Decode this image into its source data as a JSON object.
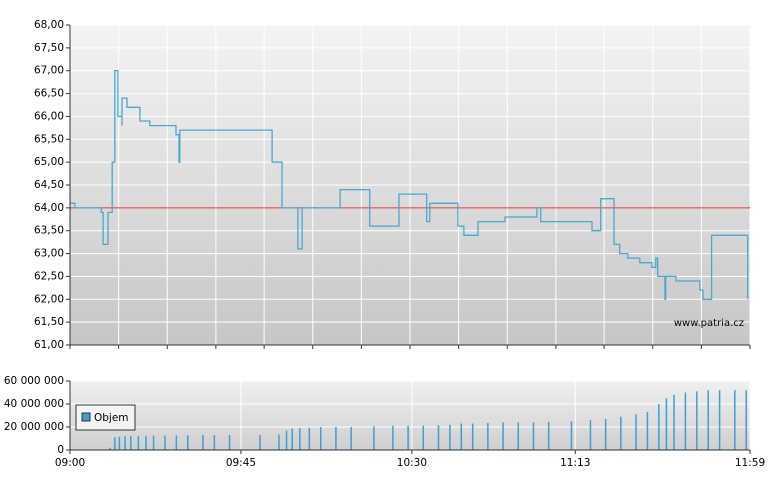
{
  "chart_data": [
    {
      "type": "line",
      "watermark": "www.patria.cz",
      "x": [
        0,
        1.3,
        1.3,
        8.2,
        8.2,
        8.7,
        8.7,
        10,
        10,
        11.1,
        11.1,
        11.8,
        11.8,
        12.6,
        12.6,
        13.7,
        13.7,
        13.7,
        15,
        15,
        18.4,
        18.4,
        21,
        21,
        27.9,
        27.9,
        28.7,
        28.7,
        28.9,
        28.9,
        53.2,
        53.2,
        55.8,
        55.8,
        60,
        60,
        61.1,
        61.1,
        71.1,
        71.1,
        78.9,
        78.9,
        86.6,
        86.6,
        93.9,
        93.9,
        94.7,
        94.7,
        102.1,
        102.1,
        103.7,
        103.7,
        107.4,
        107.4,
        114.5,
        114.5,
        122.9,
        122.9,
        123.9,
        123.9,
        137.4,
        137.4,
        139.7,
        139.7,
        143.2,
        143.2,
        144.7,
        144.7,
        146.8,
        146.8,
        150,
        150,
        153.2,
        153.2,
        154.2,
        154.2,
        154.7,
        154.7,
        156.6,
        156.6,
        156.8,
        156.8,
        159.5,
        159.5,
        165.8,
        165.8,
        166.6,
        166.6,
        168.9,
        168.9,
        178.4,
        178.4
      ],
      "series": [
        {
          "color": "#4aa8d0",
          "values": [
            64.1,
            64.1,
            64.0,
            64.0,
            63.9,
            63.9,
            63.2,
            63.2,
            63.9,
            63.9,
            65.0,
            65.0,
            67.0,
            67.0,
            66.0,
            66.0,
            65.8,
            66.4,
            66.4,
            66.2,
            66.2,
            65.9,
            65.9,
            65.8,
            65.8,
            65.6,
            65.6,
            65.0,
            65.0,
            65.7,
            65.7,
            65.0,
            65.0,
            64.0,
            64.0,
            63.1,
            63.1,
            64.0,
            64.0,
            64.4,
            64.4,
            63.6,
            63.6,
            64.3,
            64.3,
            63.7,
            63.7,
            64.1,
            64.1,
            63.6,
            63.6,
            63.4,
            63.4,
            63.7,
            63.7,
            63.8,
            63.8,
            64.0,
            64.0,
            63.7,
            63.7,
            63.5,
            63.5,
            64.2,
            64.2,
            63.2,
            63.2,
            63.0,
            63.0,
            62.9,
            62.9,
            62.8,
            62.8,
            62.7,
            62.7,
            62.9,
            62.9,
            62.5,
            62.5,
            62.0,
            62.0,
            62.5,
            62.5,
            62.4,
            62.4,
            62.2,
            62.2,
            62.0,
            62.0,
            63.4,
            63.4,
            62.0
          ]
        }
      ],
      "reference_line": 64,
      "reference_color": "#e03030",
      "xlim": [
        0,
        179
      ],
      "xgrid": [
        0,
        12.8,
        25.6,
        38.4,
        51.1,
        63.9,
        76.7,
        89.5,
        102.3,
        115.1,
        127.9,
        140.6,
        153.4,
        166.2,
        179
      ],
      "ylim": [
        61,
        68
      ],
      "yticks": [
        {
          "value": 61,
          "label": "61,00"
        },
        {
          "value": 61.5,
          "label": "61,50"
        },
        {
          "value": 62,
          "label": "62,00"
        },
        {
          "value": 62.5,
          "label": "62,50"
        },
        {
          "value": 63,
          "label": "63,00"
        },
        {
          "value": 63.5,
          "label": "63,50"
        },
        {
          "value": 64,
          "label": "64,00"
        },
        {
          "value": 64.5,
          "label": "64,50"
        },
        {
          "value": 65,
          "label": "65,00"
        },
        {
          "value": 65.5,
          "label": "65,50"
        },
        {
          "value": 66,
          "label": "66,00"
        },
        {
          "value": 66.5,
          "label": "66,50"
        },
        {
          "value": 67,
          "label": "67,00"
        },
        {
          "value": 67.5,
          "label": "67,50"
        },
        {
          "value": 68,
          "label": "68,00"
        }
      ],
      "grid": true
    },
    {
      "type": "bar",
      "x": [
        10.5,
        11.8,
        13,
        14.5,
        16,
        18,
        20,
        22,
        25,
        28,
        31,
        35,
        38,
        42,
        50,
        55,
        57,
        58.5,
        60.5,
        63,
        66,
        70,
        74,
        80,
        85,
        89,
        93,
        97,
        100,
        103,
        106,
        110,
        114,
        118,
        122,
        126,
        132,
        137,
        141,
        145,
        149,
        152,
        155,
        157,
        159,
        162,
        165,
        168,
        171,
        175,
        178
      ],
      "series": [
        {
          "name": "Objem",
          "color": "#3d9fd0",
          "values": [
            2000000,
            11000000,
            11500000,
            12000000,
            12000000,
            12200000,
            12300000,
            12500000,
            12600000,
            12800000,
            12800000,
            13000000,
            13000000,
            13000000,
            13000000,
            13500000,
            17000000,
            18500000,
            19000000,
            19500000,
            20000000,
            20000000,
            20000000,
            20500000,
            21000000,
            21000000,
            21000000,
            21500000,
            22000000,
            23000000,
            23000000,
            23500000,
            24000000,
            24000000,
            24000000,
            24500000,
            25000000,
            26000000,
            27000000,
            29000000,
            31000000,
            33000000,
            40000000,
            45000000,
            48000000,
            50000000,
            51000000,
            52000000,
            52000000,
            52000000,
            52000000
          ]
        }
      ],
      "xlim": [
        0,
        179
      ],
      "xticks": [
        {
          "value": 0,
          "label": "09:00"
        },
        {
          "value": 45,
          "label": "09:45"
        },
        {
          "value": 90,
          "label": "10:30"
        },
        {
          "value": 133,
          "label": "11:13"
        },
        {
          "value": 179,
          "label": "11:59"
        }
      ],
      "ylim": [
        0,
        60000000
      ],
      "yticks": [
        {
          "value": 0,
          "label": "0"
        },
        {
          "value": 20000000,
          "label": "20 000 000"
        },
        {
          "value": 40000000,
          "label": "40 000 000"
        },
        {
          "value": 60000000,
          "label": "60 000 000"
        }
      ],
      "grid": true
    }
  ]
}
